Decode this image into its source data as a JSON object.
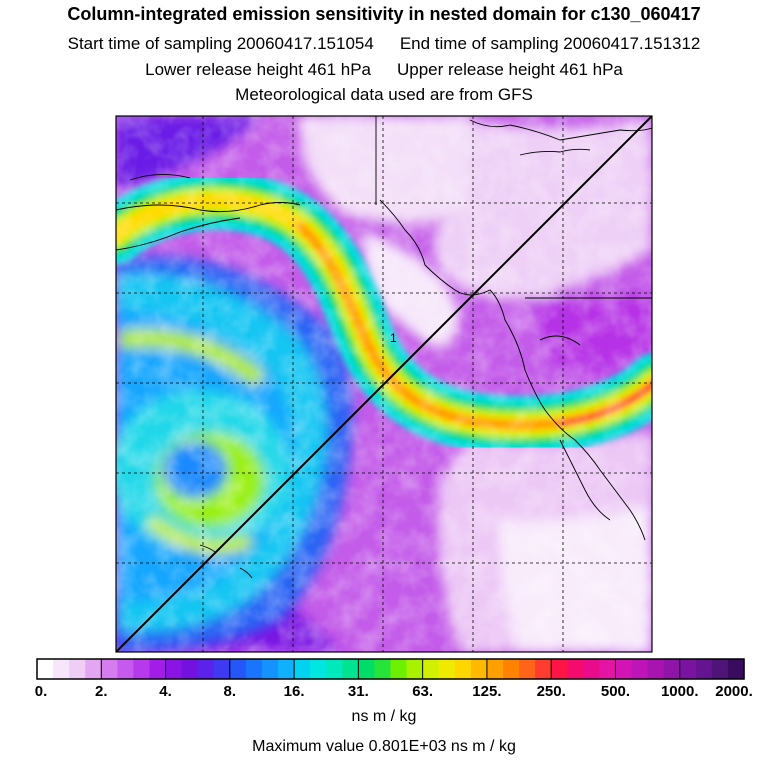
{
  "header": {
    "title": "Column-integrated emission sensitivity in nested domain for c130_060417",
    "start_label": "Start time of sampling 20060417.151054",
    "end_label": "End time of sampling 20060417.151312",
    "lower_label": "Lower release height  461 hPa",
    "upper_label": "Upper release height  461 hPa",
    "met_label": "Meteorological data used are from GFS"
  },
  "map": {
    "track_marker": "1",
    "plume_colors": [
      "#ffffff",
      "#e8c4f2",
      "#c866e6",
      "#9a14e0",
      "#5a3cf0",
      "#1e8cff",
      "#00e6e6",
      "#00d27a",
      "#b4ee00",
      "#ffe600",
      "#ffa000",
      "#ff2a3c"
    ]
  },
  "colorbar": {
    "tick_labels": [
      "0.",
      "2.",
      "4.",
      "8.",
      "16.",
      "31.",
      "63.",
      "125.",
      "250.",
      "500.",
      "1000.",
      "2000."
    ],
    "colors": [
      "#ffffff",
      "#f7e6fb",
      "#efcdf7",
      "#e2a6f2",
      "#d47cf0",
      "#c75aee",
      "#b739ec",
      "#a21ee8",
      "#8a14e4",
      "#7312e0",
      "#5a22ea",
      "#3e3af2",
      "#2456f8",
      "#1a74fc",
      "#1492ff",
      "#10b0ff",
      "#00d2f0",
      "#00e6e0",
      "#00e8be",
      "#00e492",
      "#00dc68",
      "#26e43a",
      "#6ef000",
      "#a8f200",
      "#d0f000",
      "#f0ea00",
      "#ffd600",
      "#ffba00",
      "#ffa000",
      "#ff8200",
      "#ff6418",
      "#ff3c30",
      "#ff1446",
      "#f50a6e",
      "#ea0a8c",
      "#e614a4",
      "#d214b4",
      "#be14b8",
      "#a814b0",
      "#9014a8",
      "#7a14a0",
      "#641490",
      "#4e1478",
      "#3a0c60"
    ],
    "units": "ns m / kg",
    "max_value": "Maximum value  0.801E+03 ns m / kg"
  }
}
